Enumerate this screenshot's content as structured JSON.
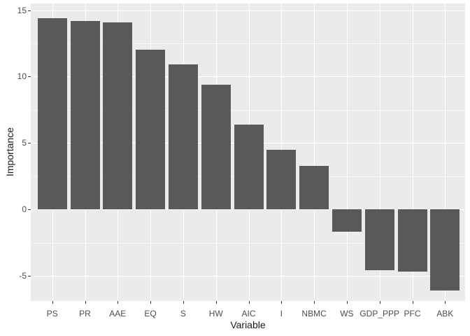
{
  "chart_data": {
    "type": "bar",
    "title": "",
    "xlabel": "Variable",
    "ylabel": "Importance",
    "categories": [
      "PS",
      "PR",
      "AAE",
      "EQ",
      "S",
      "HW",
      "AIC",
      "I",
      "NBMC",
      "WS",
      "GDP_PPP",
      "PFC",
      "ABK"
    ],
    "values": [
      14.4,
      14.2,
      14.1,
      12.0,
      10.9,
      9.4,
      6.4,
      4.5,
      3.3,
      -1.7,
      -4.6,
      -4.7,
      -6.1
    ],
    "ylim": [
      -6.9,
      15.5
    ],
    "y_major_ticks": [
      15,
      10,
      5,
      0,
      -5
    ],
    "y_minor_ticks": [
      12.5,
      7.5,
      2.5,
      -2.5
    ],
    "grid": true,
    "legend": false,
    "colors": {
      "bar": "#595959",
      "panel_background": "#EBEBEB",
      "gridline": "#FFFFFF",
      "tick_label": "#4D4D4D",
      "axis_title": "#1A1A1A",
      "figure_background": "#FFFFFF"
    }
  }
}
